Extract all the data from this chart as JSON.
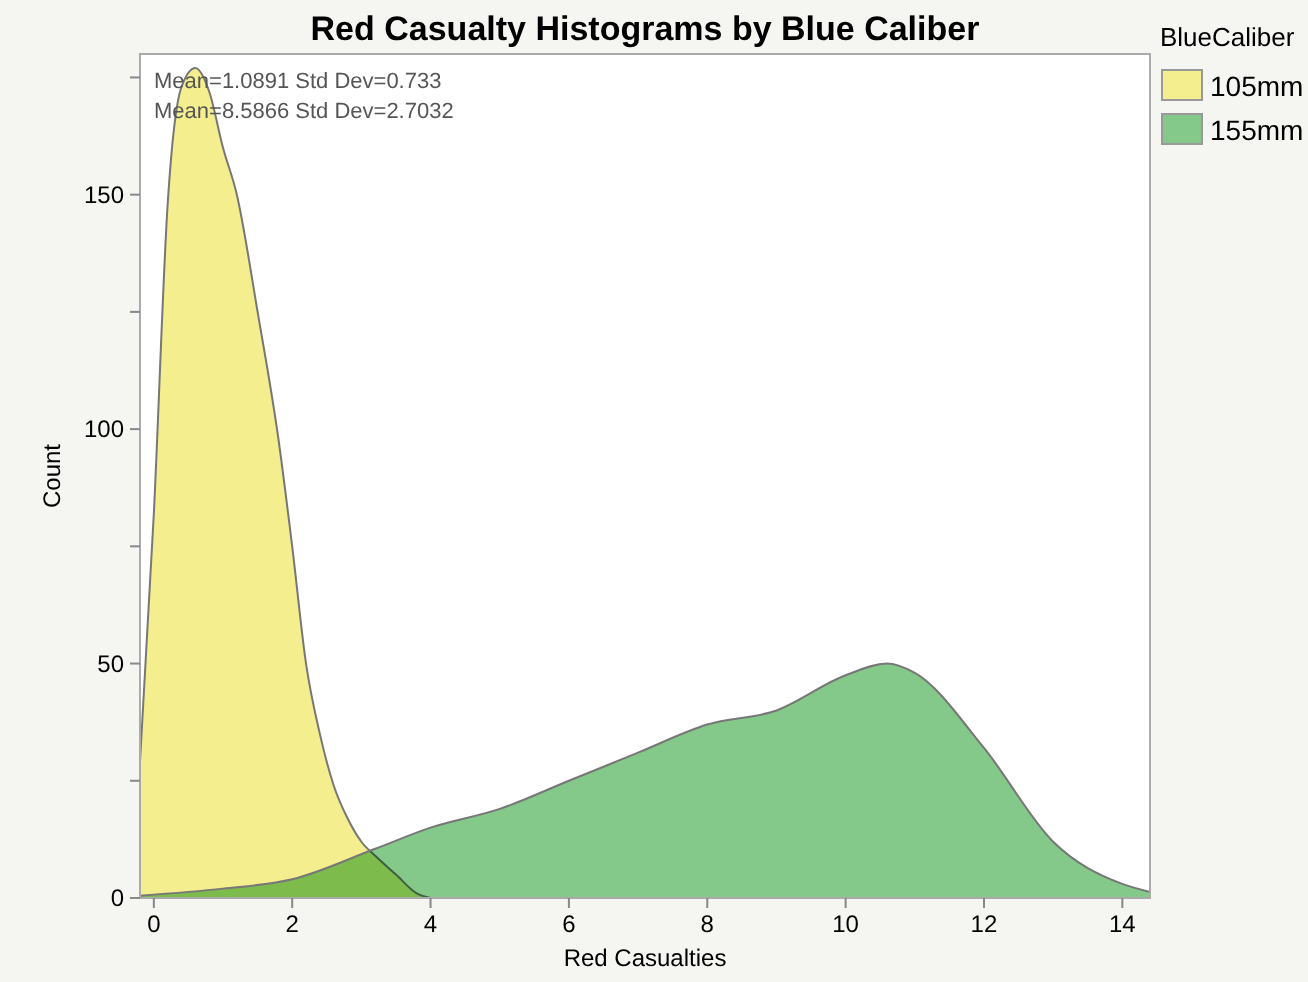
{
  "chart_data": {
    "type": "area",
    "title": "Red Casualty Histograms by Blue Caliber",
    "xlabel": "Red Casualties",
    "ylabel": "Count",
    "legend_title": "BlueCaliber",
    "legend": "top right",
    "annotations": [
      "Mean=1.0891  Std Dev=0.733",
      "Mean=8.5866  Std Dev=2.7032"
    ],
    "xlim": [
      -0.2,
      14.4
    ],
    "xticks": [
      0,
      2,
      4,
      6,
      8,
      10,
      12,
      14
    ],
    "ylim": [
      0,
      180
    ],
    "yticks": [
      0,
      {
        "value": 25,
        "label": null
      },
      50,
      {
        "value": 75,
        "label": null
      },
      100,
      {
        "value": 125,
        "label": null
      },
      150,
      {
        "value": 175,
        "label": null
      }
    ],
    "series": [
      {
        "name": "105mm",
        "color": "#f4ee8e",
        "x": [
          -0.2,
          0,
          0.2,
          0.4,
          0.6,
          0.8,
          1.0,
          1.2,
          1.5,
          1.8,
          2.0,
          2.2,
          2.4,
          2.6,
          2.8,
          3.0,
          3.2,
          3.5,
          3.8,
          4.0
        ],
        "values": [
          29,
          82,
          148,
          173,
          177,
          172,
          160,
          150,
          125,
          98,
          75,
          50,
          35,
          24,
          17,
          12,
          9,
          5,
          1,
          0
        ]
      },
      {
        "name": "155mm",
        "color": "#84c98a",
        "x": [
          -0.2,
          1,
          2,
          3.2,
          4,
          5,
          6,
          7,
          8,
          9,
          10,
          10.6,
          11,
          12,
          13,
          14,
          14.4
        ],
        "values": [
          0.5,
          2,
          4,
          10.5,
          15,
          19,
          25,
          31,
          37,
          40,
          47.5,
          50,
          48,
          32,
          12,
          3,
          1.3
        ]
      }
    ]
  }
}
